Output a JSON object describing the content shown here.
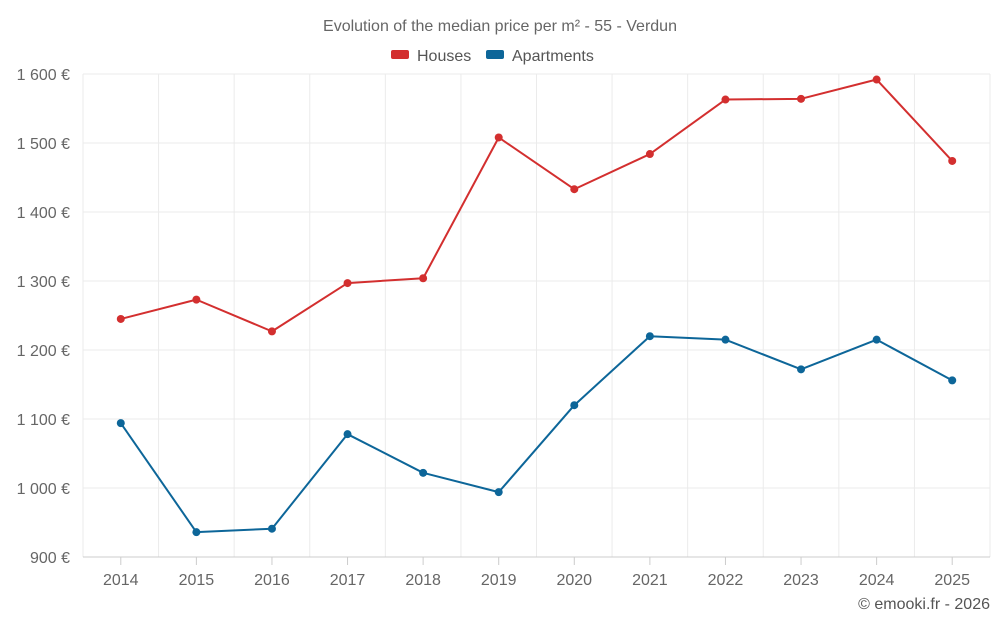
{
  "chart_data": {
    "type": "line",
    "title": "Evolution of the median price per m² - 55 - Verdun",
    "categories": [
      "2014",
      "2015",
      "2016",
      "2017",
      "2018",
      "2019",
      "2020",
      "2021",
      "2022",
      "2023",
      "2024",
      "2025"
    ],
    "series": [
      {
        "name": "Houses",
        "color": "#d32f2f",
        "values": [
          1245,
          1273,
          1227,
          1297,
          1304,
          1508,
          1433,
          1484,
          1563,
          1564,
          1592,
          1474
        ]
      },
      {
        "name": "Apartments",
        "color": "#0d6699",
        "values": [
          1094,
          936,
          941,
          1078,
          1022,
          994,
          1120,
          1220,
          1215,
          1172,
          1215,
          1156
        ]
      }
    ],
    "ylim": [
      900,
      1600
    ],
    "yticks": [
      900,
      1000,
      1100,
      1200,
      1300,
      1400,
      1500,
      1600
    ],
    "ytick_labels": [
      "900 €",
      "1 000 €",
      "1 100 €",
      "1 200 €",
      "1 300 €",
      "1 400 €",
      "1 500 €",
      "1 600 €"
    ],
    "grid": true,
    "legend_position": "top-center",
    "credit": "© emooki.fr - 2026"
  }
}
